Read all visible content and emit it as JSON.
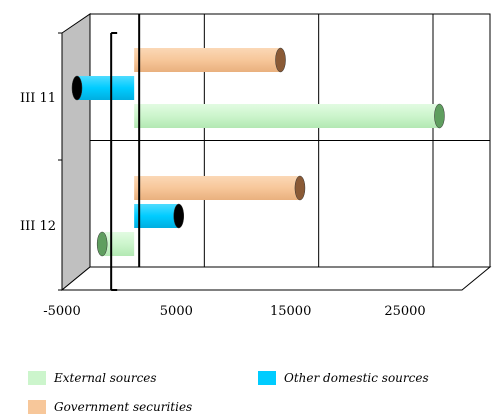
{
  "chart_data": {
    "type": "bar",
    "orientation": "horizontal",
    "view": "3d",
    "categories": [
      "III 11",
      "III 12"
    ],
    "series": [
      {
        "name": "External sources",
        "color": "#ccf5cc",
        "values": [
          26700,
          -2800
        ]
      },
      {
        "name": "Other domestic sources",
        "color": "#00ccff",
        "values": [
          -5000,
          3900
        ]
      },
      {
        "name": "Government securities",
        "color": "#f7c79a",
        "values": [
          12800,
          14500
        ]
      }
    ],
    "x_ticks": [
      "-5000",
      "5000",
      "15000",
      "25000"
    ],
    "xlim": [
      -5000,
      30000
    ],
    "grid": "vertical",
    "legend_position": "bottom"
  }
}
